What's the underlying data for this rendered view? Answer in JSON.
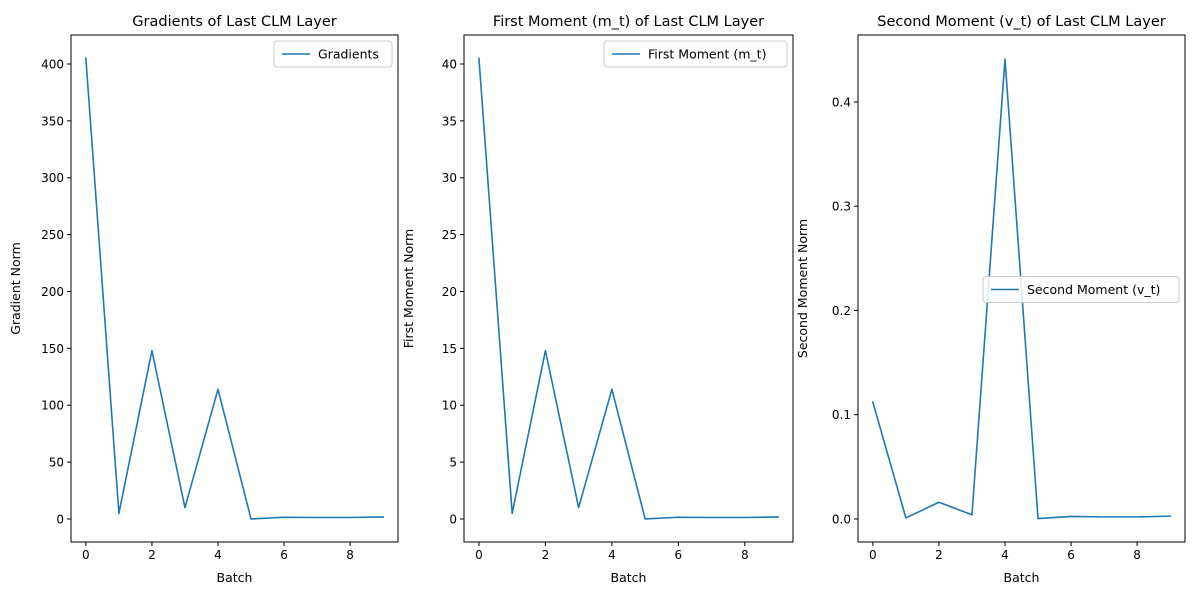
{
  "chart_data": [
    {
      "type": "line",
      "title": "Gradients of Last CLM Layer",
      "xlabel": "Batch",
      "ylabel": "Gradient Norm",
      "xlim": [
        -0.45,
        9.45
      ],
      "ylim": [
        -20.25,
        425.5
      ],
      "xticks": [
        0,
        2,
        4,
        6,
        8
      ],
      "xtick_labels": [
        "0",
        "2",
        "4",
        "6",
        "8"
      ],
      "yticks": [
        0,
        50,
        100,
        150,
        200,
        250,
        300,
        350,
        400
      ],
      "ytick_labels": [
        "0",
        "50",
        "100",
        "150",
        "200",
        "250",
        "300",
        "350",
        "400"
      ],
      "legend_position": "upper right",
      "series": [
        {
          "name": "Gradients",
          "color": "#1f77b4",
          "x": [
            0,
            1,
            2,
            3,
            4,
            5,
            6,
            7,
            8,
            9
          ],
          "values": [
            405,
            5,
            148,
            10,
            114,
            0,
            1.5,
            1.3,
            1.3,
            1.8
          ]
        }
      ]
    },
    {
      "type": "line",
      "title": "First Moment (m_t) of Last CLM Layer",
      "xlabel": "Batch",
      "ylabel": "First Moment Norm",
      "xlim": [
        -0.45,
        9.45
      ],
      "ylim": [
        -2.025,
        42.55
      ],
      "xticks": [
        0,
        2,
        4,
        6,
        8
      ],
      "xtick_labels": [
        "0",
        "2",
        "4",
        "6",
        "8"
      ],
      "yticks": [
        0,
        5,
        10,
        15,
        20,
        25,
        30,
        35,
        40
      ],
      "ytick_labels": [
        "0",
        "5",
        "10",
        "15",
        "20",
        "25",
        "30",
        "35",
        "40"
      ],
      "legend_position": "upper right",
      "series": [
        {
          "name": "First Moment (m_t)",
          "color": "#1f77b4",
          "x": [
            0,
            1,
            2,
            3,
            4,
            5,
            6,
            7,
            8,
            9
          ],
          "values": [
            40.5,
            0.5,
            14.8,
            1.0,
            11.4,
            0.0,
            0.15,
            0.13,
            0.13,
            0.18
          ]
        }
      ]
    },
    {
      "type": "line",
      "title": "Second Moment (v_t) of Last CLM Layer",
      "xlabel": "Batch",
      "ylabel": "Second Moment Norm",
      "xlim": [
        -0.45,
        9.45
      ],
      "ylim": [
        -0.0221,
        0.4642
      ],
      "xticks": [
        0,
        2,
        4,
        6,
        8
      ],
      "xtick_labels": [
        "0",
        "2",
        "4",
        "6",
        "8"
      ],
      "yticks": [
        0.0,
        0.1,
        0.2,
        0.3,
        0.4
      ],
      "ytick_labels": [
        "0.0",
        "0.1",
        "0.2",
        "0.3",
        "0.4"
      ],
      "legend_position": "center right",
      "series": [
        {
          "name": "Second Moment (v_t)",
          "color": "#1f77b4",
          "x": [
            0,
            1,
            2,
            3,
            4,
            5,
            6,
            7,
            8,
            9
          ],
          "values": [
            0.112,
            0.001,
            0.016,
            0.004,
            0.441,
            0.0004,
            0.0024,
            0.002,
            0.002,
            0.0027
          ]
        }
      ]
    }
  ]
}
